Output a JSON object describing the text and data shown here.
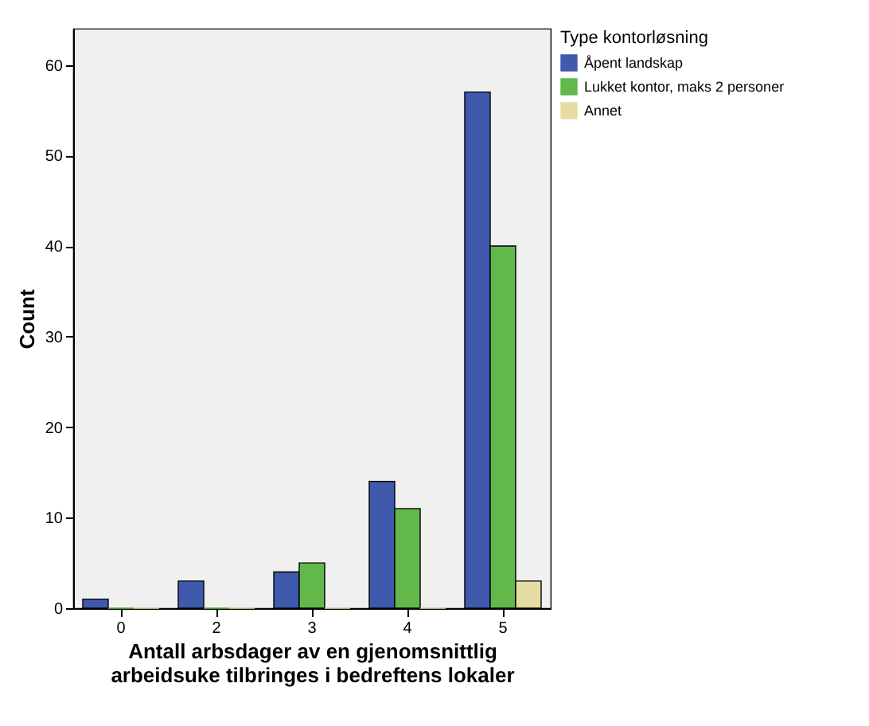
{
  "chart_data": {
    "type": "bar",
    "xlabel": "Antall arbsdager av en gjenomsnittlig arbeidsuke tilbringes i bedreftens lokaler",
    "ylabel": "Count",
    "legend_title": "Type kontorløsning",
    "legend": "top right",
    "categories": [
      "0",
      "2",
      "3",
      "4",
      "5"
    ],
    "series": [
      {
        "name": "Åpent landskap",
        "color": "#3f59ad",
        "values": [
          1,
          3,
          4,
          14,
          57
        ]
      },
      {
        "name": "Lukket kontor, maks 2 personer",
        "color": "#62b84a",
        "values": [
          0,
          0,
          5,
          11,
          40
        ]
      },
      {
        "name": "Annet",
        "color": "#e6dca3",
        "values": [
          0,
          0,
          0,
          0,
          3
        ]
      }
    ],
    "ylim": [
      0,
      64
    ],
    "yticks": [
      0,
      10,
      20,
      30,
      40,
      50,
      60
    ],
    "grid": false
  }
}
